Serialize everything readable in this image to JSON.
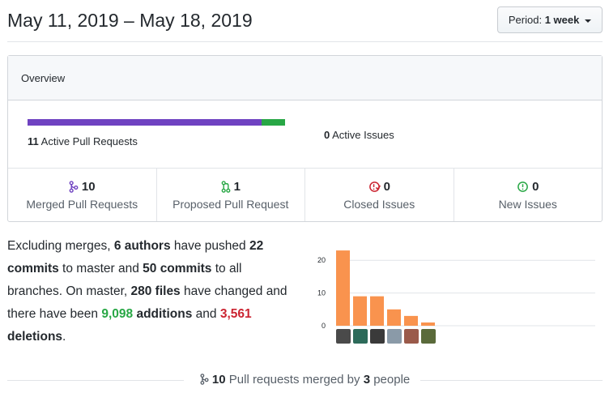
{
  "header": {
    "date_range": "May 11, 2019 – May 18, 2019",
    "period_label": "Period:",
    "period_value": "1 week"
  },
  "overview": {
    "title": "Overview",
    "pr_bar": {
      "merged": 10,
      "open": 1
    },
    "active_prs_count": "11",
    "active_prs_label": "Active Pull Requests",
    "active_issues_count": "0",
    "active_issues_label": "Active Issues",
    "stats": [
      {
        "count": "10",
        "label": "Merged Pull Requests",
        "icon": "git-merge-icon",
        "color": "#6f42c1"
      },
      {
        "count": "1",
        "label": "Proposed Pull Request",
        "icon": "git-pull-request-icon",
        "color": "#28a745"
      },
      {
        "count": "0",
        "label": "Closed Issues",
        "icon": "issue-closed-icon",
        "color": "#cb2431"
      },
      {
        "count": "0",
        "label": "New Issues",
        "icon": "issue-opened-icon",
        "color": "#28a745"
      }
    ]
  },
  "summary": {
    "t1": "Excluding merges, ",
    "authors": "6 authors",
    "t2": " have pushed ",
    "commits_master": "22 commits",
    "t3": " to master and ",
    "commits_all": "50 commits",
    "t4": " to all branches. On master, ",
    "files": "280 files",
    "t5": " have changed and there have been ",
    "additions_num": "9,098",
    "additions_word": " additions",
    "t6": " and ",
    "deletions_num": "3,561",
    "deletions_word": " deletions",
    "t7": "."
  },
  "chart_data": {
    "type": "bar",
    "categories": [
      "author-1",
      "author-2",
      "author-3",
      "author-4",
      "author-5",
      "author-6"
    ],
    "values": [
      23,
      9,
      9,
      5,
      3,
      1
    ],
    "ylim": [
      0,
      25
    ],
    "yticks": [
      "0",
      "10",
      "20"
    ],
    "bar_color": "#f9934e",
    "grid": true
  },
  "avatars": [
    {
      "color": "#4a4a4a"
    },
    {
      "color": "#2d6b5a"
    },
    {
      "color": "#3a3a3a"
    },
    {
      "color": "#8a9aa8"
    },
    {
      "color": "#9a5a4a"
    },
    {
      "color": "#5a6a3a"
    }
  ],
  "footer": {
    "count": "10",
    "t1": " Pull requests merged by ",
    "people": "3",
    "t2": " people"
  }
}
